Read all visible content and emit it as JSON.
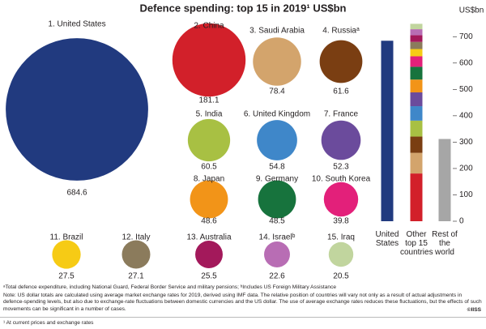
{
  "chart_data": [
    {
      "type": "bubble",
      "title": "Defence spending: top 15 in 2019¹ US$bn",
      "categories": [
        "1. United States",
        "2. China",
        "3. Saudi Arabia",
        "4. Russiaᵃ",
        "5. India",
        "6. United Kingdom",
        "7. France",
        "8. Japan",
        "9. Germany",
        "10. South Korea",
        "11. Brazil",
        "12. Italy",
        "13. Australia",
        "14. Israelᵇ",
        "15. Iraq"
      ],
      "values": [
        684.6,
        181.1,
        78.4,
        61.6,
        60.5,
        54.8,
        52.3,
        48.6,
        48.5,
        39.8,
        27.5,
        27.1,
        25.5,
        22.6,
        20.5
      ],
      "colors": [
        "#213a7f",
        "#d2202a",
        "#d3a46c",
        "#7a3e12",
        "#a8c043",
        "#3f87c9",
        "#6b4b9c",
        "#f29418",
        "#17733d",
        "#e3207a",
        "#f6cb15",
        "#8b7b5c",
        "#a3195b",
        "#b86db4",
        "#c1d59e"
      ]
    },
    {
      "type": "bar",
      "categories": [
        "United States",
        "Other top 15 countries",
        "Rest of the world"
      ],
      "rest_of_world": {
        "value": 312,
        "color": "#a6a6a6"
      },
      "y_label": "US$bn",
      "ylim": [
        0,
        750
      ],
      "yticks": [
        0,
        100,
        200,
        300,
        400,
        500,
        600,
        700
      ]
    }
  ],
  "notes": {
    "footnote": "ᵃTotal defence expenditure, including National Guard, Federal Border Service and military pensions; ᵇIncludes US Foreign Military Assistance",
    "note": "Note: US dollar totals are calculated using average market exchange rates for 2019, derived using IMF data. The relative position of countries will vary not only as a result of actual adjustments in defence-spending levels, but also due to exchange-rate fluctuations between domestic currencies and the US dollar. The use of average exchange rates reduces these fluctuations, but the effects of such movements can be significant in a number of cases.",
    "copyright": "©IISS",
    "bottom_note": "¹ At current prices and exchange rates"
  }
}
